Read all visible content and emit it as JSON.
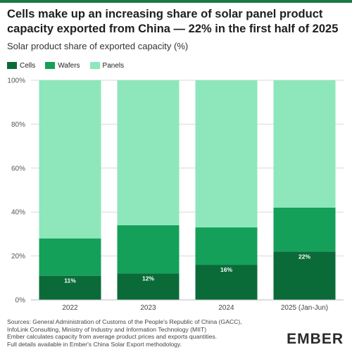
{
  "title": "Cells make up an increasing share of solar panel product capacity exported from China — 22% in the first half of 2025",
  "colors": {
    "cells": "#0a6b39",
    "wafers": "#15a05a",
    "panels": "#8de7bb",
    "grid": "#d9d9d9",
    "accent": "#1a7a45"
  },
  "chart_data": {
    "type": "bar",
    "stacked": true,
    "title": "Cells make up an increasing share of solar panel product capacity exported from China — 22% in the first half of 2025",
    "subtitle": "Solar product share of exported capacity (%)",
    "categories": [
      "2022",
      "2023",
      "2024",
      "2025 (Jan-Jun)"
    ],
    "series": [
      {
        "name": "Cells",
        "values": [
          11,
          12,
          16,
          22
        ],
        "data_labels": [
          "11%",
          "12%",
          "16%",
          "22%"
        ]
      },
      {
        "name": "Wafers",
        "values": [
          17,
          22,
          17,
          20
        ]
      },
      {
        "name": "Panels",
        "values": [
          72,
          66,
          67,
          58
        ]
      }
    ],
    "yticks": [
      "0%",
      "20%",
      "40%",
      "60%",
      "80%",
      "100%"
    ],
    "ylim": [
      0,
      100
    ],
    "grid": true,
    "legend": "top-left"
  },
  "footer": {
    "lines": [
      "Sources: General Administration of Customs of the People's Republic of China (GACC),",
      "InfoLink Consulting, Ministry of Industry and Information Technology (MIIT)",
      "Ember calculates capacity from average product prices and exports quantities.",
      "Full details available in Ember's China Solar Export methodology."
    ]
  },
  "logo": "EMBER"
}
